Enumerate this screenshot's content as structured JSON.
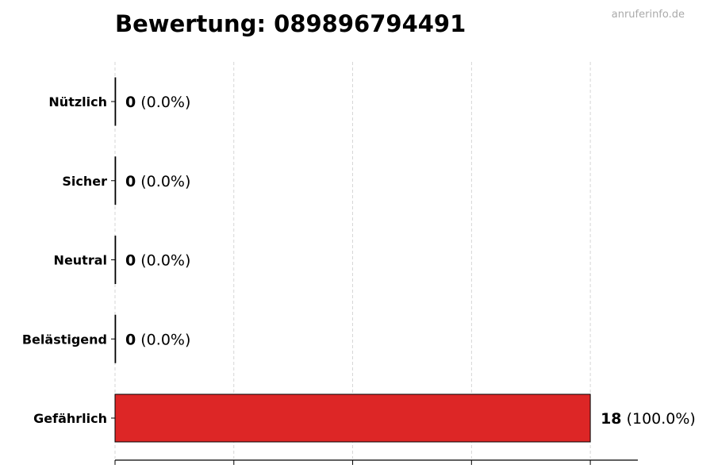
{
  "watermark": "anruferinfo.de",
  "chart_data": {
    "type": "bar",
    "orientation": "horizontal",
    "title": "Bewertung: 089896794491",
    "categories": [
      "Nützlich",
      "Sicher",
      "Neutral",
      "Belästigend",
      "Gefährlich"
    ],
    "values": [
      0,
      0,
      0,
      0,
      18
    ],
    "value_labels": [
      "0",
      "0",
      "0",
      "0",
      "18"
    ],
    "percent_labels": [
      "(0.0%)",
      "(0.0%)",
      "(0.0%)",
      "(0.0%)",
      "(100.0%)"
    ],
    "colors": [
      "#2e7d32",
      "#43a047",
      "#9e9e9e",
      "#fb8c00",
      "#dd2626"
    ],
    "xlim": [
      0,
      19.8
    ],
    "xticks": [
      0,
      4.5,
      9,
      13.5,
      18
    ],
    "grid": true,
    "xlabel": "",
    "ylabel": ""
  }
}
